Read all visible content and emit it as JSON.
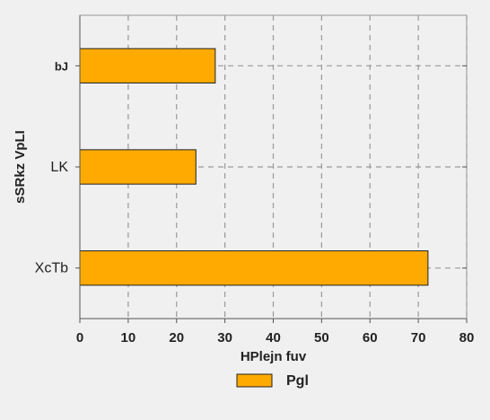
{
  "chart_data": {
    "type": "bar",
    "orientation": "horizontal",
    "categories": [
      "bJ",
      "LK",
      "XcTb"
    ],
    "series": [
      {
        "name": "Pgl",
        "values": [
          28,
          24,
          72
        ],
        "color": "#ffaa00"
      }
    ],
    "xlabel": "HPlejn fuv",
    "ylabel": "sSRkz VpLI",
    "xlim": [
      0,
      80
    ],
    "xticks": [
      0,
      10,
      20,
      30,
      40,
      50,
      60,
      70,
      80
    ],
    "grid": true,
    "legend_position": "bottom"
  }
}
